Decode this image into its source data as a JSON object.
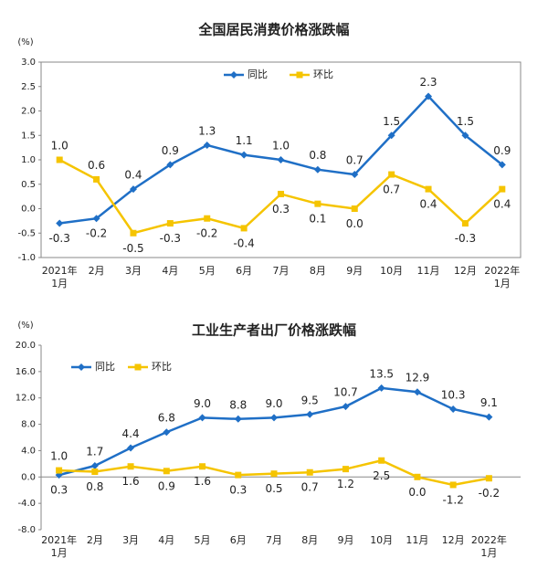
{
  "chart_data": [
    {
      "type": "line",
      "title": "全国居民消费价格涨跌幅",
      "y_label": "(%)",
      "categories": [
        "2021年\n1月",
        "2月",
        "3月",
        "4月",
        "5月",
        "6月",
        "7月",
        "8月",
        "9月",
        "10月",
        "11月",
        "12月",
        "2022年\n1月"
      ],
      "series": [
        {
          "name": "同比",
          "color": "#1f6fc6",
          "values": [
            -0.3,
            -0.2,
            0.4,
            0.9,
            1.3,
            1.1,
            1.0,
            0.8,
            0.7,
            1.5,
            2.3,
            1.5,
            0.9
          ],
          "value_labels": [
            "-0.3",
            "-0.2",
            "0.4",
            "0.9",
            "1.3",
            "1.1",
            "1.0",
            "0.8",
            "0.7",
            "1.5",
            "2.3",
            "1.5",
            "0.9"
          ]
        },
        {
          "name": "环比",
          "color": "#f5c400",
          "values": [
            1.0,
            0.6,
            -0.5,
            -0.3,
            -0.2,
            -0.4,
            0.3,
            0.1,
            0.0,
            0.7,
            0.4,
            -0.3,
            0.4
          ],
          "value_labels": [
            "1.0",
            "0.6",
            "-0.5",
            "-0.3",
            "-0.2",
            "-0.4",
            "0.3",
            "0.1",
            "0.0",
            "0.7",
            "0.4",
            "-0.3",
            "0.4"
          ]
        }
      ],
      "ylim": [
        -1,
        3
      ],
      "yticks": [
        {
          "value": -1,
          "label": "-1.0"
        },
        -0.5,
        {
          "value": 0,
          "label": "0.0"
        },
        0.5,
        {
          "value": 1,
          "label": "1.0"
        },
        1.5,
        {
          "value": 2,
          "label": "2.0"
        },
        2.5,
        {
          "value": 3,
          "label": "3.0"
        }
      ],
      "legend": "top",
      "grid": false
    },
    {
      "type": "line",
      "title": "工业生产者出厂价格涨跌幅",
      "y_label": "(%)",
      "categories": [
        "2021年\n1月",
        "2月",
        "3月",
        "4月",
        "5月",
        "6月",
        "7月",
        "8月",
        "9月",
        "10月",
        "11月",
        "12月",
        "2022年\n1月"
      ],
      "series": [
        {
          "name": "同比",
          "color": "#1f6fc6",
          "values": [
            0.3,
            1.7,
            4.4,
            6.8,
            9.0,
            8.8,
            9.0,
            9.5,
            10.7,
            13.5,
            12.9,
            10.3,
            9.1
          ],
          "value_labels": [
            "0.3",
            "1.7",
            "4.4",
            "6.8",
            "9.0",
            "8.8",
            "9.0",
            "9.5",
            "10.7",
            "13.5",
            "12.9",
            "10.3",
            "9.1"
          ]
        },
        {
          "name": "环比",
          "color": "#f5c400",
          "values": [
            1.0,
            0.8,
            1.6,
            0.9,
            1.6,
            0.3,
            0.5,
            0.7,
            1.2,
            2.5,
            0.0,
            -1.2,
            -0.2
          ],
          "value_labels": [
            "1.0",
            "0.8",
            "1.6",
            "0.9",
            "1.6",
            "0.3",
            "0.5",
            "0.7",
            "1.2",
            "2.5",
            "0.0",
            "-1.2",
            "-0.2"
          ]
        }
      ],
      "ylim": [
        -8,
        20
      ],
      "yticks": [
        {
          "value": -8,
          "label": "-8.0"
        },
        {
          "value": -4,
          "label": "-4.0"
        },
        {
          "value": 0,
          "label": "0.0"
        },
        {
          "value": 4,
          "label": "4.0"
        },
        {
          "value": 8,
          "label": "8.0"
        },
        {
          "value": 12,
          "label": "12.0"
        },
        {
          "value": 16,
          "label": "16.0"
        },
        {
          "value": 20,
          "label": "20.0"
        }
      ],
      "legend": "upper left",
      "grid": false
    }
  ]
}
